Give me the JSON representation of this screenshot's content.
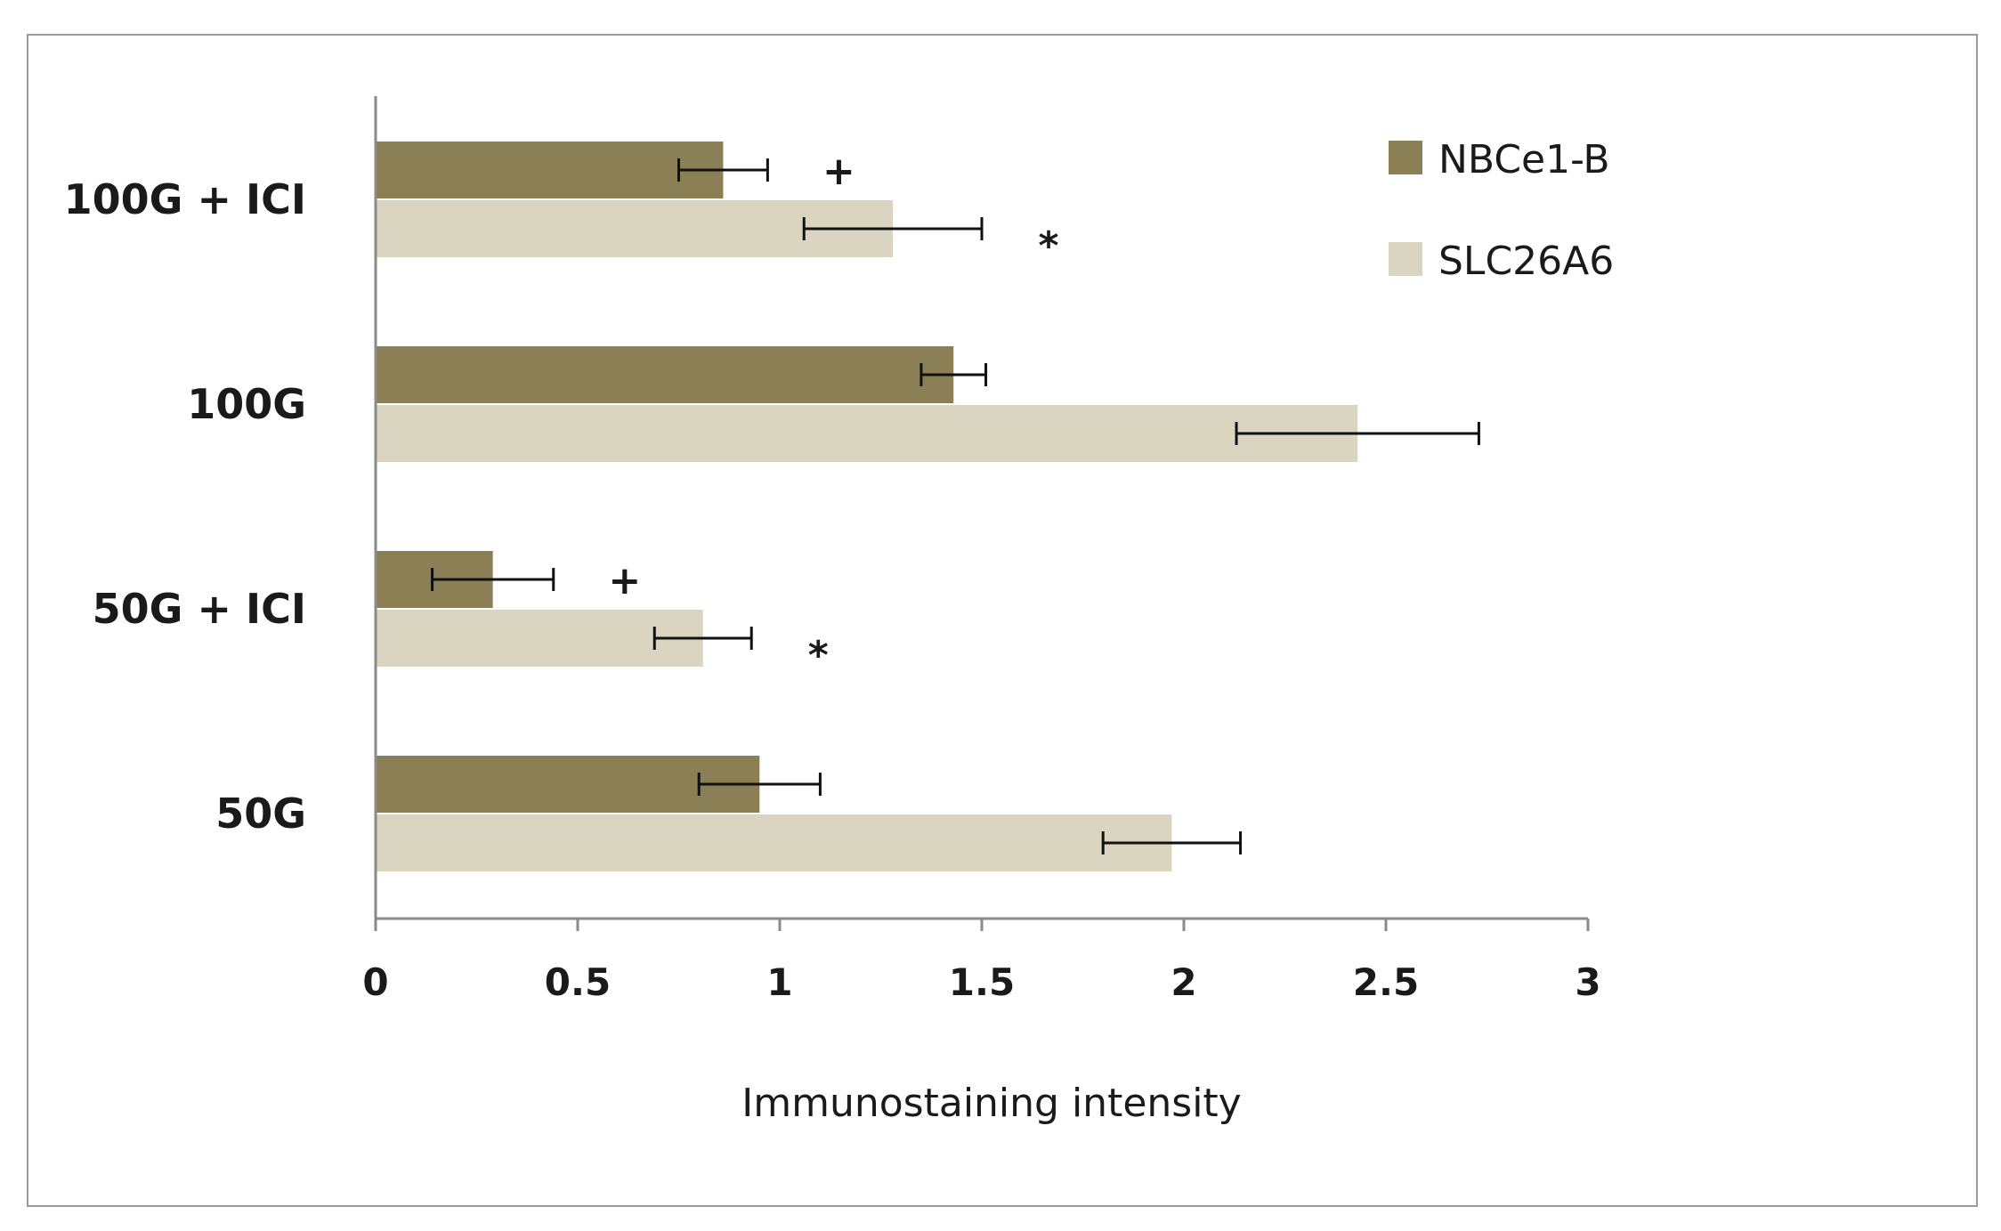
{
  "chart_data": {
    "type": "bar",
    "orientation": "horizontal",
    "title": "",
    "xlabel": "Immunostaining intensity",
    "ylabel": "",
    "xlim": [
      0,
      3
    ],
    "xticks": [
      "0",
      "0.5",
      "1",
      "1.5",
      "2",
      "2.5",
      "3"
    ],
    "grid": false,
    "legend_position": "top-right",
    "categories": [
      "100G + ICI",
      "100G",
      "50G + ICI",
      "50G"
    ],
    "series": [
      {
        "name": "NBCe1-B",
        "color": "#8b7f55",
        "values": [
          0.86,
          1.43,
          0.29,
          0.95
        ],
        "errors": [
          0.11,
          0.08,
          0.15,
          0.15
        ],
        "annotations": [
          "+",
          "",
          "+",
          ""
        ]
      },
      {
        "name": "SLC26A6",
        "color": "#d9d5c1",
        "values": [
          1.28,
          2.43,
          0.81,
          1.97
        ],
        "errors": [
          0.22,
          0.3,
          0.12,
          0.17
        ],
        "annotations": [
          "*",
          "",
          "*",
          ""
        ]
      }
    ]
  }
}
